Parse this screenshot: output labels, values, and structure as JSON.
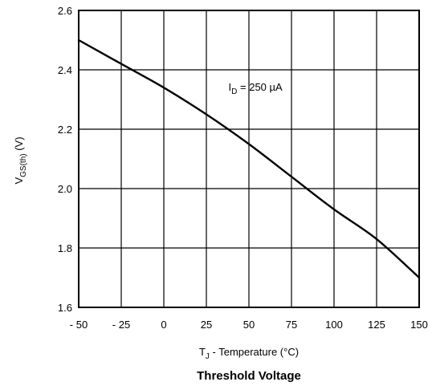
{
  "chart_data": {
    "type": "line",
    "title": "Threshold Voltage",
    "xlabel": {
      "main": "T",
      "sub": "J",
      "rest": " - Temperature (°C)"
    },
    "ylabel": {
      "main": "V",
      "sub": "GS(th)",
      "rest": "  (V)"
    },
    "xlim": [
      -50,
      150
    ],
    "ylim": [
      1.6,
      2.6
    ],
    "x_ticks": [
      -50,
      -25,
      0,
      25,
      50,
      75,
      100,
      125,
      150
    ],
    "x_tick_labels": [
      "- 50",
      "- 25",
      "0",
      "25",
      "50",
      "75",
      "100",
      "125",
      "150"
    ],
    "y_ticks": [
      1.6,
      1.8,
      2.0,
      2.2,
      2.4,
      2.6
    ],
    "y_tick_labels": [
      "1.6",
      "1.8",
      "2.0",
      "2.2",
      "2.4",
      "2.6"
    ],
    "grid": true,
    "series": [
      {
        "x": [
          -50,
          -25,
          0,
          25,
          50,
          75,
          100,
          125,
          150
        ],
        "y": [
          2.5,
          2.42,
          2.34,
          2.25,
          2.15,
          2.04,
          1.93,
          1.83,
          1.7
        ]
      }
    ],
    "annotation": {
      "main": "I",
      "sub": "D",
      "rest": " = 250 µA",
      "x": 38,
      "y": 2.33
    },
    "colors": {
      "line": "#000000",
      "grid": "#000000",
      "frame": "#000000"
    }
  }
}
